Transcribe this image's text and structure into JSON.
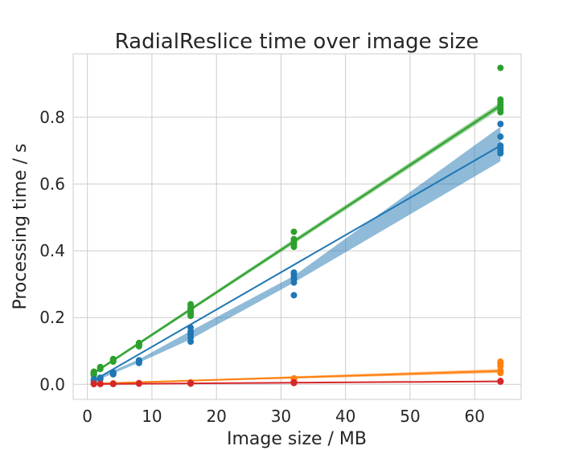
{
  "chart_data": {
    "type": "scatter",
    "title": "RadialReslice time over image size",
    "xlabel": "Image size / MB",
    "ylabel": "Processing time / s",
    "xlim": [
      -2.2,
      67.2
    ],
    "ylim": [
      -0.045,
      0.99
    ],
    "xticks": [
      0,
      10,
      20,
      30,
      40,
      50,
      60
    ],
    "yticks": [
      0.0,
      0.2,
      0.4,
      0.6,
      0.8
    ],
    "grid": true,
    "legend": "none",
    "series": [
      {
        "color": "#2ca02c",
        "fit": {
          "x": [
            1,
            64
          ],
          "y": [
            0.034,
            0.835
          ],
          "band_x": [
            1,
            64
          ],
          "band_lo": [
            0.03,
            0.826
          ],
          "band_hi": [
            0.038,
            0.844
          ]
        },
        "points": [
          [
            1,
            0.027
          ],
          [
            1,
            0.03
          ],
          [
            1,
            0.032
          ],
          [
            1,
            0.034
          ],
          [
            1,
            0.036
          ],
          [
            1,
            0.038
          ],
          [
            2,
            0.046
          ],
          [
            2,
            0.048
          ],
          [
            2,
            0.05
          ],
          [
            2,
            0.052
          ],
          [
            4,
            0.068
          ],
          [
            4,
            0.07
          ],
          [
            4,
            0.072
          ],
          [
            4,
            0.074
          ],
          [
            4,
            0.076
          ],
          [
            8,
            0.114
          ],
          [
            8,
            0.117
          ],
          [
            8,
            0.12
          ],
          [
            8,
            0.122
          ],
          [
            8,
            0.124
          ],
          [
            16,
            0.205
          ],
          [
            16,
            0.212
          ],
          [
            16,
            0.218
          ],
          [
            16,
            0.225
          ],
          [
            16,
            0.232
          ],
          [
            16,
            0.24
          ],
          [
            32,
            0.412
          ],
          [
            32,
            0.418
          ],
          [
            32,
            0.425
          ],
          [
            32,
            0.43
          ],
          [
            32,
            0.435
          ],
          [
            32,
            0.457
          ],
          [
            64,
            0.815
          ],
          [
            64,
            0.822
          ],
          [
            64,
            0.83
          ],
          [
            64,
            0.838
          ],
          [
            64,
            0.845
          ],
          [
            64,
            0.853
          ],
          [
            64,
            0.948
          ]
        ]
      },
      {
        "color": "#1f77b4",
        "fit": {
          "x": [
            1,
            64
          ],
          "y": [
            0.012,
            0.715
          ],
          "band_x": [
            1,
            8,
            16,
            32,
            64
          ],
          "band_lo": [
            0.008,
            0.065,
            0.135,
            0.305,
            0.668
          ],
          "band_hi": [
            0.016,
            0.075,
            0.16,
            0.325,
            0.772
          ]
        },
        "points": [
          [
            1,
            0.008
          ],
          [
            1,
            0.012
          ],
          [
            1,
            0.015
          ],
          [
            2,
            0.015
          ],
          [
            2,
            0.018
          ],
          [
            2,
            0.02
          ],
          [
            4,
            0.03
          ],
          [
            4,
            0.032
          ],
          [
            4,
            0.034
          ],
          [
            4,
            0.036
          ],
          [
            8,
            0.064
          ],
          [
            8,
            0.067
          ],
          [
            8,
            0.07
          ],
          [
            8,
            0.072
          ],
          [
            16,
            0.128
          ],
          [
            16,
            0.14
          ],
          [
            16,
            0.15
          ],
          [
            16,
            0.158
          ],
          [
            16,
            0.17
          ],
          [
            32,
            0.267
          ],
          [
            32,
            0.305
          ],
          [
            32,
            0.315
          ],
          [
            32,
            0.322
          ],
          [
            32,
            0.33
          ],
          [
            32,
            0.335
          ],
          [
            64,
            0.692
          ],
          [
            64,
            0.7
          ],
          [
            64,
            0.708
          ],
          [
            64,
            0.715
          ],
          [
            64,
            0.742
          ],
          [
            64,
            0.78
          ]
        ]
      },
      {
        "color": "#ff7f0e",
        "fit": {
          "x": [
            1,
            64
          ],
          "y": [
            0.002,
            0.04
          ],
          "band_x": [
            1,
            64
          ],
          "band_lo": [
            0.001,
            0.034
          ],
          "band_hi": [
            0.003,
            0.046
          ]
        },
        "points": [
          [
            1,
            0.001
          ],
          [
            1,
            0.002
          ],
          [
            2,
            0.002
          ],
          [
            4,
            0.003
          ],
          [
            8,
            0.004
          ],
          [
            16,
            0.006
          ],
          [
            32,
            0.012
          ],
          [
            32,
            0.015
          ],
          [
            32,
            0.018
          ],
          [
            64,
            0.034
          ],
          [
            64,
            0.038
          ],
          [
            64,
            0.042
          ],
          [
            64,
            0.055
          ],
          [
            64,
            0.063
          ],
          [
            64,
            0.068
          ]
        ]
      },
      {
        "color": "#d62728",
        "fit": {
          "x": [
            1,
            64
          ],
          "y": [
            0.001,
            0.009
          ],
          "band_x": [
            1,
            64
          ],
          "band_lo": [
            0.0005,
            0.007
          ],
          "band_hi": [
            0.0015,
            0.011
          ]
        },
        "points": [
          [
            1,
            0.001
          ],
          [
            1,
            0.002
          ],
          [
            2,
            0.001
          ],
          [
            2,
            0.002
          ],
          [
            4,
            0.001
          ],
          [
            4,
            0.002
          ],
          [
            8,
            0.002
          ],
          [
            8,
            0.003
          ],
          [
            16,
            0.002
          ],
          [
            16,
            0.004
          ],
          [
            32,
            0.004
          ],
          [
            32,
            0.006
          ],
          [
            64,
            0.008
          ],
          [
            64,
            0.009
          ],
          [
            64,
            0.01
          ]
        ]
      }
    ]
  }
}
